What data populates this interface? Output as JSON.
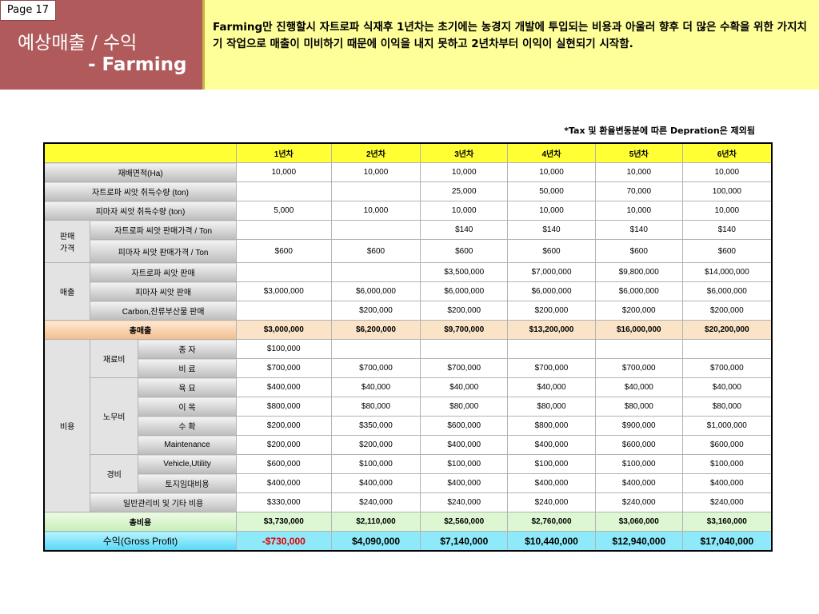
{
  "slide": {
    "page_label": "Page 17",
    "title_line1": "예상매출 / 수익",
    "title_line2": "- Farming",
    "description": "Farming만 진행할시 자트로파 식재후 1년차는 초기에는 농경지 개발에 투입되는 비용과 아울러 향후 더 많은 수확을 위한 가지치기 작업으로 매출이 미비하기 때문에 이익을 내지 못하고 2년차부터 이익이 실현되기 시작함.",
    "note": "*Tax 및 환율변동분에 따른 Depration은 제외됨"
  },
  "table": {
    "years": [
      "1년차",
      "2년차",
      "3년차",
      "4년차",
      "5년차",
      "6년차"
    ],
    "groups": {
      "sales_price": "판매\n가격",
      "revenue": "매출",
      "cost": "비용",
      "material": "재료비",
      "labor": "노무비",
      "expense": "경비"
    },
    "rows": {
      "area": {
        "label": "재배면적(Ha)",
        "values": [
          "10,000",
          "10,000",
          "10,000",
          "10,000",
          "10,000",
          "10,000"
        ]
      },
      "jat_seed": {
        "label": "자트로파 씨앗  취득수량 (ton)",
        "values": [
          "",
          "",
          "25,000",
          "50,000",
          "70,000",
          "100,000"
        ]
      },
      "pim_seed": {
        "label": "피마자 씨앗 취득수량 (ton)",
        "values": [
          "5,000",
          "10,000",
          "10,000",
          "10,000",
          "10,000",
          "10,000"
        ]
      },
      "jat_price": {
        "label": "자트로파 씨앗 판매가격 / Ton",
        "values": [
          "",
          "",
          "$140",
          "$140",
          "$140",
          "$140"
        ]
      },
      "pim_price": {
        "label": "피마자 씨앗  판매가격 / Ton",
        "values": [
          "$600",
          "$600",
          "$600",
          "$600",
          "$600",
          "$600"
        ]
      },
      "jat_sales": {
        "label": "자트로파 씨앗 판매",
        "values": [
          "",
          "",
          "$3,500,000",
          "$7,000,000",
          "$9,800,000",
          "$14,000,000"
        ]
      },
      "pim_sales": {
        "label": "피마자 씨앗 판매",
        "values": [
          "$3,000,000",
          "$6,000,000",
          "$6,000,000",
          "$6,000,000",
          "$6,000,000",
          "$6,000,000"
        ]
      },
      "carbon": {
        "label": "Carbon,잔류부산물 판매",
        "values": [
          "",
          "$200,000",
          "$200,000",
          "$200,000",
          "$200,000",
          "$200,000"
        ]
      },
      "total_rev": {
        "label": "총매출",
        "values": [
          "$3,000,000",
          "$6,200,000",
          "$9,700,000",
          "$13,200,000",
          "$16,000,000",
          "$20,200,000"
        ]
      },
      "seed": {
        "label": "종 자",
        "values": [
          "$100,000",
          "",
          "",
          "",
          "",
          ""
        ]
      },
      "fert": {
        "label": "비 료",
        "values": [
          "$700,000",
          "$700,000",
          "$700,000",
          "$700,000",
          "$700,000",
          "$700,000"
        ]
      },
      "nursery": {
        "label": "육 묘",
        "values": [
          "$400,000",
          "$40,000",
          "$40,000",
          "$40,000",
          "$40,000",
          "$40,000"
        ]
      },
      "transplant": {
        "label": "이 목",
        "values": [
          "$800,000",
          "$80,000",
          "$80,000",
          "$80,000",
          "$80,000",
          "$80,000"
        ]
      },
      "harvest": {
        "label": "수 확",
        "values": [
          "$200,000",
          "$350,000",
          "$600,000",
          "$800,000",
          "$900,000",
          "$1,000,000"
        ]
      },
      "maint": {
        "label": "Maintenance",
        "values": [
          "$200,000",
          "$200,000",
          "$400,000",
          "$400,000",
          "$600,000",
          "$600,000"
        ]
      },
      "vehicle": {
        "label": "Vehicle,Utility",
        "values": [
          "$600,000",
          "$100,000",
          "$100,000",
          "$100,000",
          "$100,000",
          "$100,000"
        ]
      },
      "land": {
        "label": "토지임대비용",
        "values": [
          "$400,000",
          "$400,000",
          "$400,000",
          "$400,000",
          "$400,000",
          "$400,000"
        ]
      },
      "admin": {
        "label": "일반관리비 및 기타 비용",
        "values": [
          "$330,000",
          "$240,000",
          "$240,000",
          "$240,000",
          "$240,000",
          "$240,000"
        ]
      },
      "total_cost": {
        "label": "총비용",
        "values": [
          "$3,730,000",
          "$2,110,000",
          "$2,560,000",
          "$2,760,000",
          "$3,060,000",
          "$3,160,000"
        ]
      },
      "profit": {
        "label": "수익(Gross Profit)",
        "values": [
          "-$730,000",
          "$4,090,000",
          "$7,140,000",
          "$10,440,000",
          "$12,940,000",
          "$17,040,000"
        ]
      }
    },
    "colors": {
      "negative": "#e00000",
      "header": "#ffff33",
      "profit_row": "#8ee9fb"
    }
  }
}
